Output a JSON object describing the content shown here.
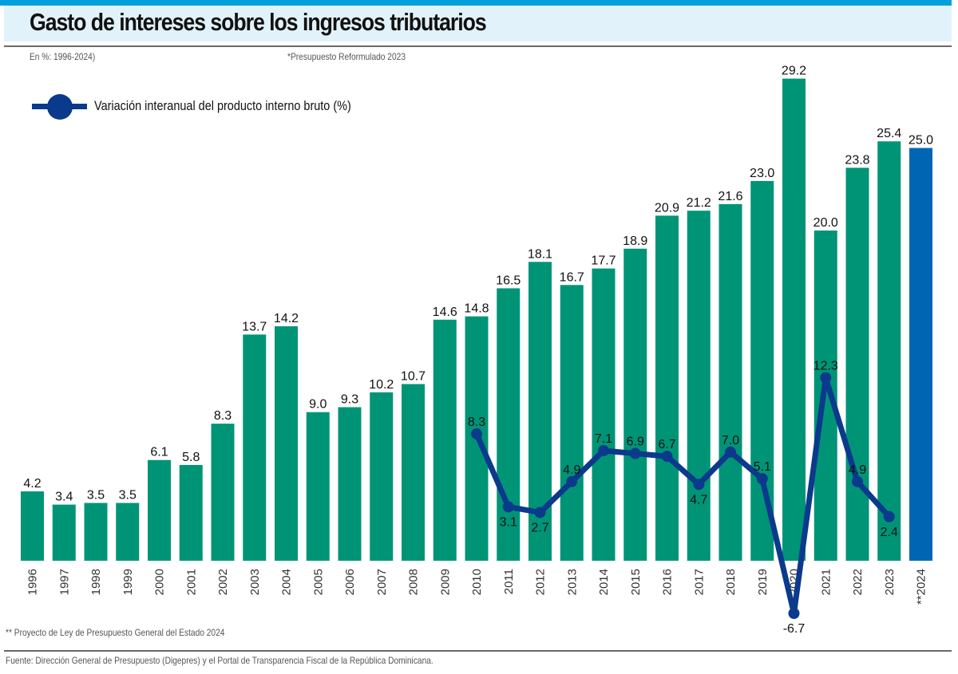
{
  "header": {
    "title": "Gasto de intereses sobre los ingresos tributarios",
    "subtitle": "En %: 1996-2024)",
    "note": "*Presupuesto Reformulado 2023"
  },
  "legend": {
    "label": "Variación interanual del producto interno bruto (%)",
    "icon": "line-with-dot-marker"
  },
  "footer": {
    "footnote": "** Proyecto de Ley de Presupuesto General del Estado 2024",
    "source": "Fuente: Dirección General de Presupuesto (Digepres) y el Portal de Transparencia Fiscal de la República Dominicana."
  },
  "colors": {
    "bar": "#009477",
    "bar_projected": "#0066b3",
    "line": "#0b3a8c",
    "accent_strip": "#00a0dc",
    "title_band": "#e2f2fb"
  },
  "chart_data": {
    "type": "bar",
    "title": "Gasto de intereses sobre los ingresos tributarios",
    "subtitle": "En %: 1996-2024)",
    "xlabel": "",
    "ylabel": "",
    "grid": false,
    "legend_position": "top-left",
    "categories": [
      "1996",
      "1997",
      "1998",
      "1999",
      "2000",
      "2001",
      "2002",
      "2003",
      "2004",
      "2005",
      "2006",
      "2007",
      "2008",
      "2009",
      "2010",
      "2011",
      "2012",
      "2013",
      "2014",
      "2015",
      "2016",
      "2017",
      "2018",
      "2019",
      "2020",
      "2021",
      "2022",
      "2023",
      "**2024"
    ],
    "series": [
      {
        "name": "Gasto de intereses sobre los ingresos tributarios (%)",
        "type": "bar",
        "values": [
          4.2,
          3.4,
          3.5,
          3.5,
          6.1,
          5.8,
          8.3,
          13.7,
          14.2,
          9.0,
          9.3,
          10.2,
          10.7,
          14.6,
          14.8,
          16.5,
          18.1,
          16.7,
          17.7,
          18.9,
          20.9,
          21.2,
          21.6,
          23.0,
          29.2,
          20.0,
          23.8,
          25.4,
          25.0
        ],
        "labels": [
          "4.2",
          "3.4",
          "3.5",
          "3.5",
          "6.1",
          "5.8",
          "8.3",
          "13.7",
          "14.2",
          "9.0",
          "9.3",
          "10.2",
          "10.7",
          "14.6",
          "14.8",
          "16.5",
          "18.1",
          "16.7",
          "17.7",
          "18.9",
          "20.9",
          "21.2",
          "21.6",
          "23.0",
          "29.2",
          "20.0",
          "23.8",
          "25.4",
          "25.0"
        ],
        "highlight_index": 28
      },
      {
        "name": "Variación interanual del producto interno bruto (%)",
        "type": "line",
        "start_category": "2010",
        "values": [
          null,
          null,
          null,
          null,
          null,
          null,
          null,
          null,
          null,
          null,
          null,
          null,
          null,
          null,
          8.3,
          3.1,
          2.7,
          4.9,
          7.1,
          6.9,
          6.7,
          4.7,
          7.0,
          5.1,
          -6.7,
          12.3,
          4.9,
          2.4,
          null
        ],
        "labels": [
          null,
          null,
          null,
          null,
          null,
          null,
          null,
          null,
          null,
          null,
          null,
          null,
          null,
          null,
          "8.3",
          "3.1",
          "2.7",
          "4.9",
          "7.1",
          "6.9",
          "6.7",
          "4.7",
          "7.0",
          "5.1",
          "-6.7",
          "12.3",
          "4.9",
          "2.4",
          null
        ]
      }
    ],
    "ylim": [
      0,
      30
    ]
  }
}
